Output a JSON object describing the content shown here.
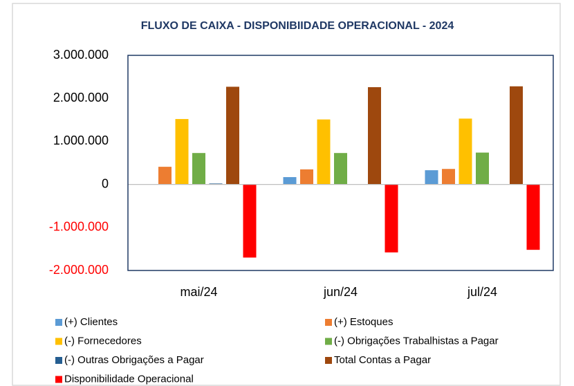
{
  "chart_data": {
    "type": "bar",
    "title": "FLUXO DE CAIXA - DISPONIBIIDADE OPERACIONAL - 2024",
    "categories": [
      "mai/24",
      "jun/24",
      "jul/24"
    ],
    "series": [
      {
        "name": "(+) Clientes",
        "color": "#5b9bd5",
        "values": [
          0,
          170000,
          330000
        ]
      },
      {
        "name": "(+) Estoques",
        "color": "#ed7d31",
        "values": [
          410000,
          350000,
          360000
        ]
      },
      {
        "name": "(-) Fornecedores",
        "color": "#ffc000",
        "values": [
          1520000,
          1510000,
          1530000
        ]
      },
      {
        "name": "(-) Obrigações Trabalhistas a Pagar",
        "color": "#70ad47",
        "values": [
          730000,
          730000,
          740000
        ]
      },
      {
        "name": "(-) Outras Obrigações a Pagar",
        "color": "#255e91",
        "values": [
          20000,
          0,
          0
        ]
      },
      {
        "name": "Total Contas a Pagar",
        "color": "#9e480e",
        "values": [
          2270000,
          2260000,
          2280000
        ]
      },
      {
        "name": "Disponibilidade Operacional",
        "color": "#ff0000",
        "values": [
          -1700000,
          -1580000,
          -1520000
        ]
      }
    ],
    "ylim": [
      -2000000,
      3000000
    ],
    "yticks": [
      {
        "value": -2000000,
        "label": "-2.000.000"
      },
      {
        "value": -1000000,
        "label": "-1.000.000"
      },
      0,
      {
        "value": 1000000,
        "label": "1.000.000"
      },
      {
        "value": 2000000,
        "label": "2.000.000"
      },
      {
        "value": 3000000,
        "label": "3.000.000"
      }
    ],
    "grid": false,
    "legend": "bottom"
  }
}
